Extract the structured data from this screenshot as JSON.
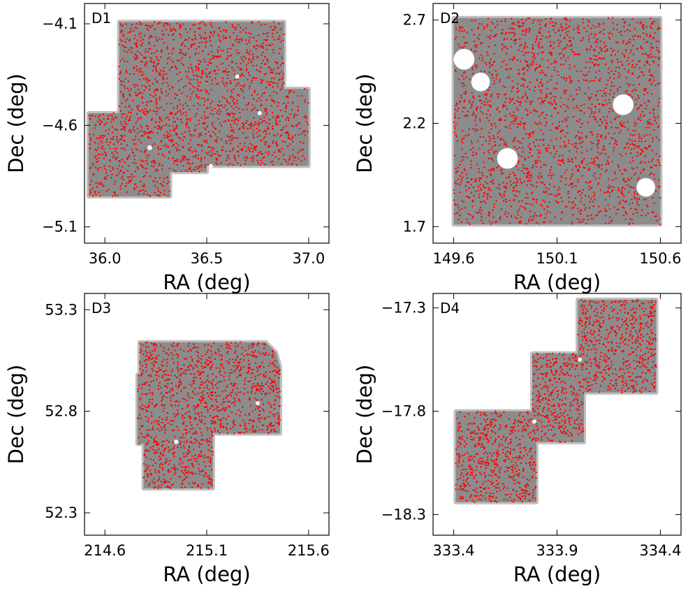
{
  "colors": {
    "footprint": "#8c8c8c",
    "sources": "#ff0000",
    "masked_holes": "#ffffff",
    "axes": "#000000"
  },
  "chart_data": [
    {
      "type": "scatter",
      "panel_label": "D1",
      "xlabel": "RA (deg)",
      "ylabel": "Dec (deg)",
      "xlim": [
        35.9,
        37.1
      ],
      "ylim": [
        -5.18,
        -4.0
      ],
      "xticks": [
        "36.0",
        "36.5",
        "37.0"
      ],
      "yticks": [
        "-4.1",
        "-4.6",
        "-5.1"
      ],
      "xtick_values": [
        36.0,
        36.5,
        37.0
      ],
      "ytick_values": [
        -4.1,
        -4.6,
        -5.1
      ],
      "grid": false,
      "series": [
        {
          "role": "footprint",
          "polygon": [
            [
              36.07,
              -4.09
            ],
            [
              36.88,
              -4.09
            ],
            [
              36.88,
              -4.42
            ],
            [
              37.0,
              -4.42
            ],
            [
              37.0,
              -4.8
            ],
            [
              36.5,
              -4.8
            ],
            [
              36.5,
              -4.83
            ],
            [
              36.32,
              -4.83
            ],
            [
              36.32,
              -4.95
            ],
            [
              35.92,
              -4.95
            ],
            [
              35.92,
              -4.54
            ],
            [
              36.07,
              -4.54
            ]
          ],
          "holes": [
            [
              36.22,
              -4.71,
              0.012
            ],
            [
              36.76,
              -4.54,
              0.01
            ],
            [
              36.65,
              -4.36,
              0.01
            ],
            [
              36.52,
              -4.8,
              0.01
            ]
          ]
        },
        {
          "role": "sources",
          "n_points": 1900,
          "x_range": [
            35.92,
            37.0
          ],
          "y_range": [
            -4.95,
            -4.09
          ]
        }
      ]
    },
    {
      "type": "scatter",
      "panel_label": "D2",
      "xlabel": "RA (deg)",
      "ylabel": "Dec (deg)",
      "xlim": [
        149.5,
        150.7
      ],
      "ylim": [
        1.62,
        2.78
      ],
      "xticks": [
        "149.6",
        "150.1",
        "150.6"
      ],
      "yticks": [
        "1.7",
        "2.2",
        "2.7"
      ],
      "xtick_values": [
        149.6,
        150.1,
        150.6
      ],
      "ytick_values": [
        1.7,
        2.2,
        2.7
      ],
      "grid": false,
      "series": [
        {
          "role": "footprint",
          "polygon": [
            [
              149.6,
              1.71
            ],
            [
              150.6,
              1.71
            ],
            [
              150.6,
              2.71
            ],
            [
              149.6,
              2.71
            ]
          ],
          "holes": [
            [
              149.65,
              2.51,
              0.05
            ],
            [
              149.73,
              2.4,
              0.045
            ],
            [
              149.86,
              2.03,
              0.05
            ],
            [
              150.42,
              2.29,
              0.05
            ],
            [
              150.53,
              1.89,
              0.045
            ]
          ]
        },
        {
          "role": "sources",
          "n_points": 2100,
          "x_range": [
            149.6,
            150.6
          ],
          "y_range": [
            1.71,
            2.71
          ]
        }
      ]
    },
    {
      "type": "scatter",
      "panel_label": "D3",
      "xlabel": "RA (deg)",
      "ylabel": "Dec (deg)",
      "xlim": [
        214.5,
        215.7
      ],
      "ylim": [
        52.19,
        53.38
      ],
      "xticks": [
        "214.6",
        "215.1",
        "215.6"
      ],
      "yticks": [
        "52.3",
        "52.8",
        "53.3"
      ],
      "xtick_values": [
        214.6,
        215.1,
        215.6
      ],
      "ytick_values": [
        52.3,
        52.8,
        53.3
      ],
      "grid": false,
      "series": [
        {
          "role": "footprint",
          "polygon": [
            [
              214.77,
              53.14
            ],
            [
              215.39,
              53.14
            ],
            [
              215.44,
              53.09
            ],
            [
              215.46,
              53.02
            ],
            [
              215.46,
              52.69
            ],
            [
              215.13,
              52.69
            ],
            [
              215.13,
              52.42
            ],
            [
              214.79,
              52.42
            ],
            [
              214.79,
              52.64
            ],
            [
              214.76,
              52.64
            ],
            [
              214.76,
              52.98
            ],
            [
              214.77,
              52.98
            ]
          ],
          "holes": [
            [
              214.95,
              52.65,
              0.01
            ],
            [
              215.35,
              52.84,
              0.01
            ]
          ]
        },
        {
          "role": "sources",
          "n_points": 1300,
          "x_range": [
            214.76,
            215.46
          ],
          "y_range": [
            52.42,
            53.14
          ]
        }
      ]
    },
    {
      "type": "scatter",
      "panel_label": "D4",
      "xlabel": "RA (deg)",
      "ylabel": "Dec (deg)",
      "xlim": [
        333.3,
        334.5
      ],
      "ylim": [
        -18.4,
        -17.23
      ],
      "xticks": [
        "333.4",
        "333.9",
        "334.4"
      ],
      "yticks": [
        "-17.3",
        "-17.8",
        "-18.3"
      ],
      "xtick_values": [
        333.4,
        333.9,
        334.4
      ],
      "ytick_values": [
        -17.3,
        -17.8,
        -18.3
      ],
      "grid": false,
      "series": [
        {
          "role": "footprint",
          "polygon": [
            [
              333.41,
              -18.24
            ],
            [
              333.8,
              -18.24
            ],
            [
              333.8,
              -17.95
            ],
            [
              334.03,
              -17.95
            ],
            [
              334.03,
              -17.71
            ],
            [
              334.38,
              -17.71
            ],
            [
              334.38,
              -17.26
            ],
            [
              334.0,
              -17.26
            ],
            [
              334.0,
              -17.52
            ],
            [
              333.78,
              -17.52
            ],
            [
              333.78,
              -17.8
            ],
            [
              333.41,
              -17.8
            ]
          ],
          "holes": [
            [
              333.79,
              -17.85,
              0.01
            ],
            [
              334.01,
              -17.55,
              0.01
            ]
          ]
        },
        {
          "role": "sources",
          "n_points": 1500,
          "x_range": [
            333.41,
            334.38
          ],
          "y_range": [
            -18.24,
            -17.26
          ]
        }
      ]
    }
  ]
}
